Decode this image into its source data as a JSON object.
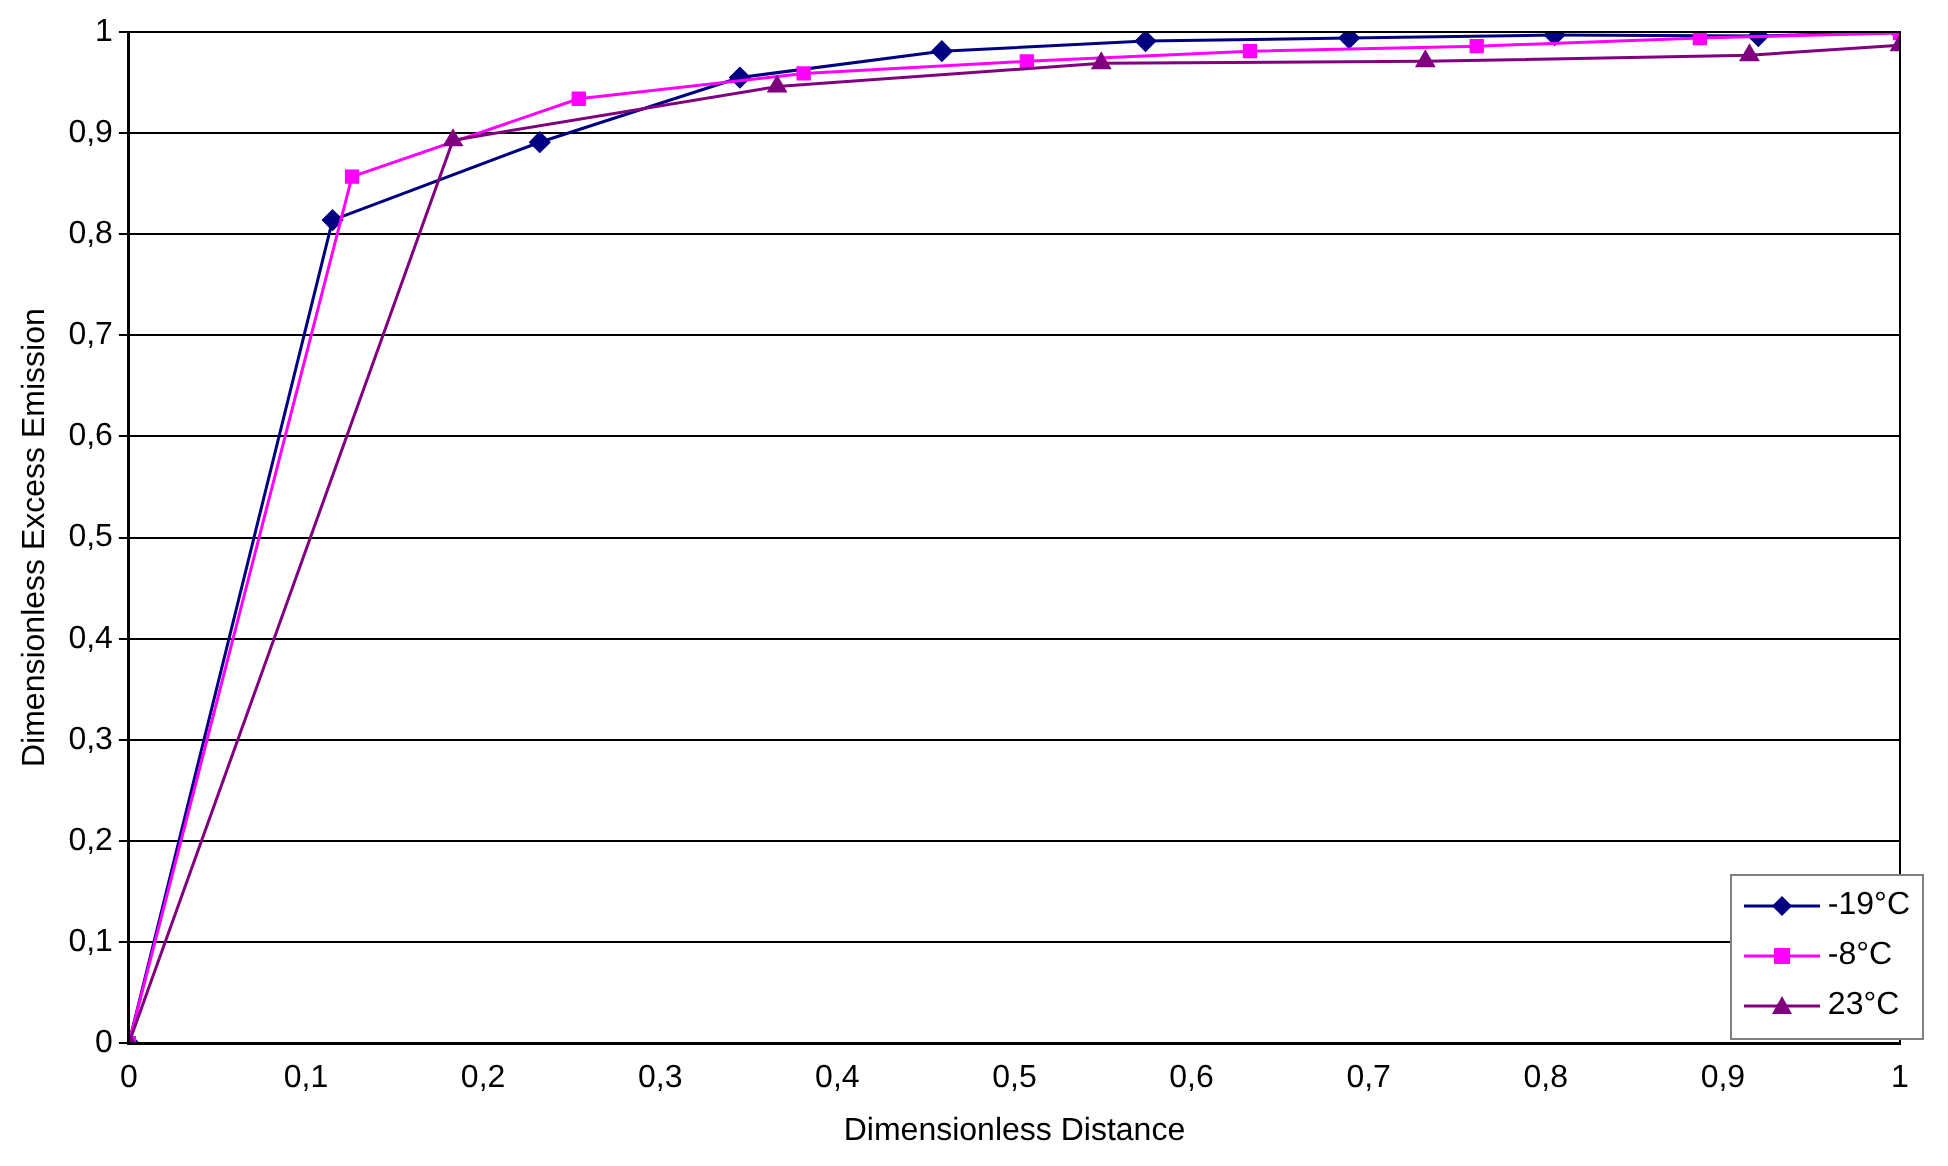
{
  "chart_data": {
    "type": "line",
    "xlabel": "Dimensionless Distance",
    "ylabel": "Dimensionless Excess Emission",
    "series": [
      {
        "name": "-19°C",
        "color": "#000080",
        "marker": "diamond",
        "x": [
          0,
          0.115,
          0.232,
          0.345,
          0.459,
          0.574,
          0.689,
          0.805,
          0.92,
          1
        ],
        "values": [
          0,
          0.814,
          0.891,
          0.955,
          0.981,
          0.991,
          0.994,
          0.997,
          0.996,
          1
        ]
      },
      {
        "name": "-8°C",
        "color": "#ff00ff",
        "marker": "square",
        "x": [
          0,
          0.126,
          0.254,
          0.381,
          0.507,
          0.633,
          0.761,
          0.887,
          1
        ],
        "values": [
          0,
          0.857,
          0.934,
          0.959,
          0.971,
          0.981,
          0.986,
          0.994,
          0.999
        ]
      },
      {
        "name": "23°C",
        "color": "#800080",
        "marker": "triangle",
        "x": [
          0,
          0.183,
          0.366,
          0.549,
          0.732,
          0.915,
          1
        ],
        "values": [
          0,
          0.893,
          0.946,
          0.969,
          0.971,
          0.977,
          0.987
        ]
      }
    ],
    "xlim": [
      0,
      1
    ],
    "xticks": [
      0,
      {
        "value": 0.1,
        "label": "0,1"
      },
      {
        "value": 0.2,
        "label": "0,2"
      },
      {
        "value": 0.3,
        "label": "0,3"
      },
      {
        "value": 0.4,
        "label": "0,4"
      },
      {
        "value": 0.5,
        "label": "0,5"
      },
      {
        "value": 0.6,
        "label": "0,6"
      },
      {
        "value": 0.7,
        "label": "0,7"
      },
      {
        "value": 0.8,
        "label": "0,8"
      },
      {
        "value": 0.9,
        "label": "0,9"
      },
      1
    ],
    "ylim": [
      0,
      1
    ],
    "yticks": [
      0,
      {
        "value": 0.1,
        "label": "0,1"
      },
      {
        "value": 0.2,
        "label": "0,2"
      },
      {
        "value": 0.3,
        "label": "0,3"
      },
      {
        "value": 0.4,
        "label": "0,4"
      },
      {
        "value": 0.5,
        "label": "0,5"
      },
      {
        "value": 0.6,
        "label": "0,6"
      },
      {
        "value": 0.7,
        "label": "0,7"
      },
      {
        "value": 0.8,
        "label": "0,8"
      },
      {
        "value": 0.9,
        "label": "0,9"
      },
      1
    ],
    "grid": "y",
    "legend": "bottom right",
    "line_style": "solid"
  }
}
